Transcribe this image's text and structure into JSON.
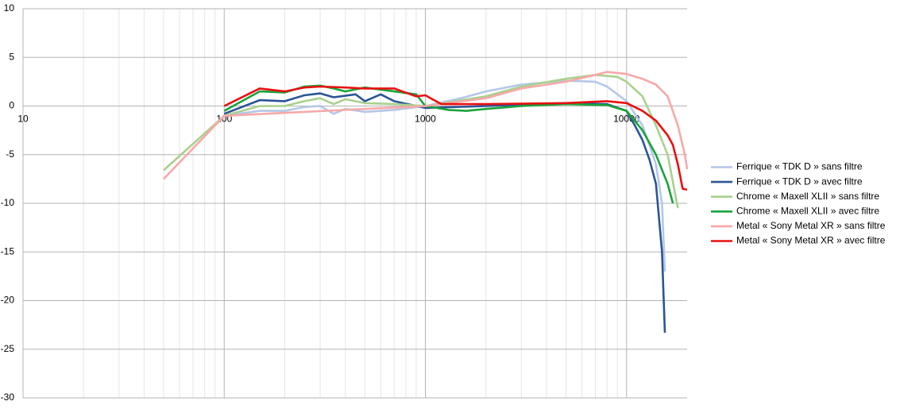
{
  "chart_data": {
    "type": "line",
    "log_x": true,
    "grid": true,
    "minor_grid": true,
    "legend": "right",
    "xlim": [
      10,
      20000
    ],
    "xticks": [
      10,
      100,
      1000,
      10000
    ],
    "ylim": [
      -30,
      10
    ],
    "yticks": [
      -30,
      -25,
      -20,
      -15,
      -10,
      -5,
      0,
      5,
      10
    ],
    "series": [
      {
        "name": "Ferrique « TDK D » sans filtre",
        "color": "#b4c7e7",
        "x": [
          100,
          150,
          200,
          250,
          300,
          350,
          400,
          500,
          700,
          1000,
          1500,
          2000,
          3000,
          5000,
          7000,
          8000,
          10000,
          12000,
          13000,
          14000,
          15000,
          15500
        ],
        "values": [
          -1,
          -0.5,
          -0.5,
          -0.1,
          0,
          -0.8,
          -0.3,
          -0.6,
          -0.4,
          0,
          0.8,
          1.5,
          2.2,
          2.6,
          2.5,
          2.0,
          0.5,
          -2,
          -4,
          -6,
          -10,
          -17
        ]
      },
      {
        "name": "Ferrique « TDK D » avec filtre",
        "color": "#2a5597",
        "x": [
          100,
          150,
          200,
          250,
          300,
          350,
          450,
          500,
          600,
          700,
          1000,
          2000,
          5000,
          8000,
          10000,
          11000,
          12000,
          13000,
          14000,
          15000,
          15500
        ],
        "values": [
          -0.8,
          0.6,
          0.5,
          1.1,
          1.3,
          0.9,
          1.2,
          0.5,
          1.2,
          0.5,
          -0.2,
          0,
          0.3,
          0.2,
          -0.5,
          -2,
          -3.5,
          -5.5,
          -8,
          -15,
          -23.3
        ]
      },
      {
        "name": "Chrome « Maxell XLII » sans filtre",
        "color": "#a9d18e",
        "x": [
          50,
          100,
          150,
          200,
          250,
          300,
          350,
          400,
          500,
          700,
          1000,
          2000,
          3000,
          5000,
          7000,
          9000,
          10000,
          12000,
          14000,
          16000,
          18000
        ],
        "values": [
          -6.6,
          -1,
          0,
          0,
          0.5,
          0.8,
          0.2,
          0.7,
          0.3,
          0.2,
          0,
          1,
          2,
          2.8,
          3.2,
          3.0,
          2.5,
          1,
          -2,
          -5,
          -10.5
        ]
      },
      {
        "name": "Chrome « Maxell XLII » avec filtre",
        "color": "#1aa33a",
        "x": [
          100,
          150,
          200,
          250,
          300,
          350,
          400,
          500,
          700,
          900,
          1000,
          1300,
          1600,
          2000,
          3000,
          5000,
          8000,
          10000,
          12000,
          14000,
          16000,
          17000
        ],
        "values": [
          -0.5,
          1.5,
          1.4,
          2,
          2.1,
          1.8,
          1.5,
          1.9,
          1.5,
          1.2,
          0,
          -0.4,
          -0.5,
          -0.3,
          0,
          0.2,
          0.1,
          -0.5,
          -2.5,
          -5,
          -8,
          -10
        ]
      },
      {
        "name": "Metal « Sony Metal XR » sans filtre",
        "color": "#f7a8a8",
        "x": [
          50,
          100,
          1000,
          2000,
          3000,
          5000,
          7000,
          8000,
          10000,
          12000,
          14000,
          16000,
          18000,
          19500,
          20000
        ],
        "values": [
          -7.5,
          -1,
          0,
          0.8,
          1.8,
          2.5,
          3.2,
          3.5,
          3.3,
          2.8,
          2.2,
          1,
          -2,
          -5,
          -6.5
        ]
      },
      {
        "name": "Metal « Sony Metal XR » avec filtre",
        "color": "#e81010",
        "x": [
          100,
          150,
          200,
          250,
          300,
          400,
          500,
          700,
          900,
          1000,
          1200,
          2000,
          5000,
          8000,
          10000,
          12000,
          14000,
          16000,
          17000,
          18000,
          19000,
          20000
        ],
        "values": [
          0,
          1.8,
          1.5,
          1.9,
          2,
          1.9,
          1.8,
          1.8,
          1,
          1.1,
          0.2,
          0.2,
          0.3,
          0.5,
          0.3,
          -0.5,
          -1.5,
          -3,
          -4,
          -6,
          -8.5,
          -8.6
        ]
      }
    ]
  }
}
